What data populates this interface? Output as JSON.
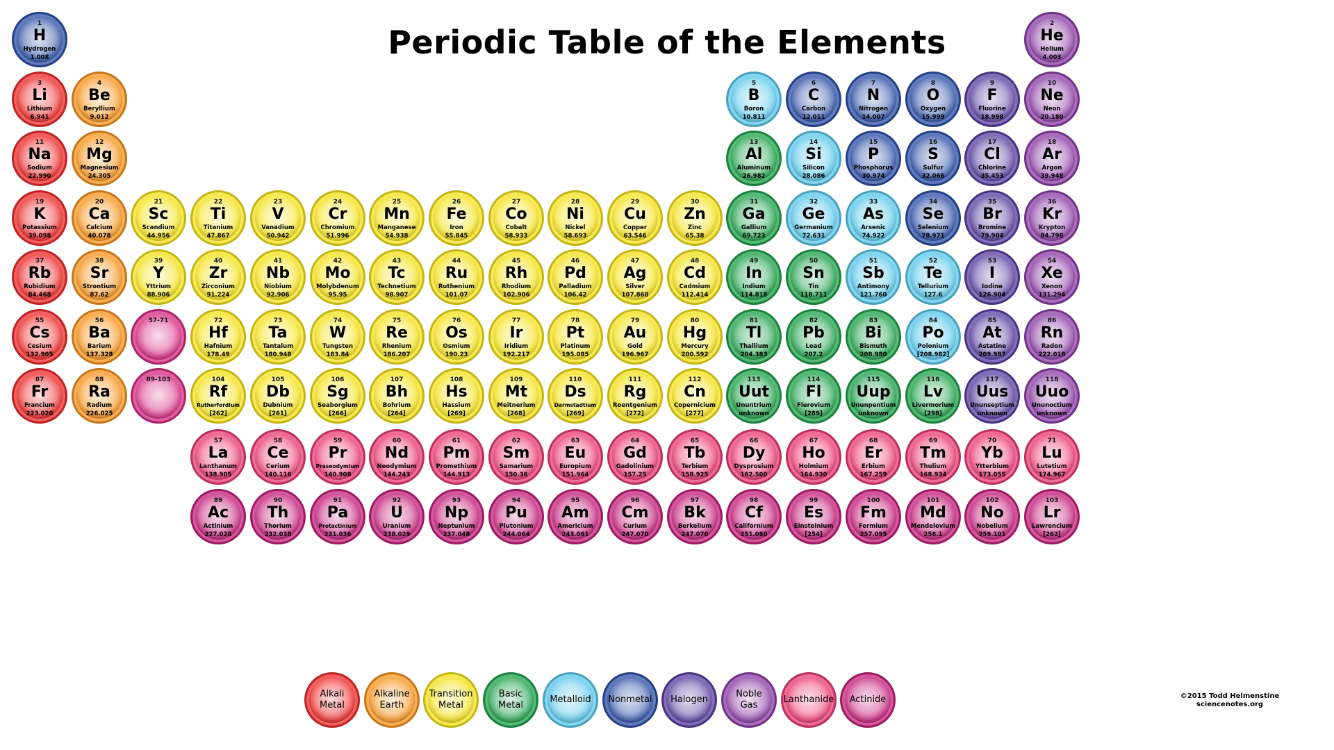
{
  "title": "Periodic Table of the Elements",
  "colors": {
    "alkali": "#ee2a2a",
    "alkaline": "#f7941d",
    "transition": "#f4e21a",
    "basic": "#1fa14a",
    "metalloid": "#5bc8ea",
    "nonmetal": "#2d4fa6",
    "halogen": "#5a3fa0",
    "noble": "#8b3ea5",
    "lanthanide": "#ea3b74",
    "actinide": "#c41f7a",
    "placeholder": "#d62a82"
  },
  "elements": [
    {
      "n": "1",
      "s": "H",
      "name": "Hydrogen",
      "m": "1.008",
      "c": "nonmetal",
      "r": 1,
      "col": 1
    },
    {
      "n": "2",
      "s": "He",
      "name": "Helium",
      "m": "4.003",
      "c": "noble",
      "r": 1,
      "col": 18
    },
    {
      "n": "3",
      "s": "Li",
      "name": "Lithium",
      "m": "6.941",
      "c": "alkali",
      "r": 2,
      "col": 1
    },
    {
      "n": "4",
      "s": "Be",
      "name": "Beryllium",
      "m": "9.012",
      "c": "alkaline",
      "r": 2,
      "col": 2
    },
    {
      "n": "5",
      "s": "B",
      "name": "Boron",
      "m": "10.811",
      "c": "metalloid",
      "r": 2,
      "col": 13
    },
    {
      "n": "6",
      "s": "C",
      "name": "Carbon",
      "m": "12.011",
      "c": "nonmetal",
      "r": 2,
      "col": 14
    },
    {
      "n": "7",
      "s": "N",
      "name": "Nitrogen",
      "m": "14.007",
      "c": "nonmetal",
      "r": 2,
      "col": 15
    },
    {
      "n": "8",
      "s": "O",
      "name": "Oxygen",
      "m": "15.999",
      "c": "nonmetal",
      "r": 2,
      "col": 16
    },
    {
      "n": "9",
      "s": "F",
      "name": "Fluorine",
      "m": "18.998",
      "c": "halogen",
      "r": 2,
      "col": 17
    },
    {
      "n": "10",
      "s": "Ne",
      "name": "Neon",
      "m": "20.180",
      "c": "noble",
      "r": 2,
      "col": 18
    },
    {
      "n": "11",
      "s": "Na",
      "name": "Sodium",
      "m": "22.990",
      "c": "alkali",
      "r": 3,
      "col": 1
    },
    {
      "n": "12",
      "s": "Mg",
      "name": "Magnesium",
      "m": "24.305",
      "c": "alkaline",
      "r": 3,
      "col": 2
    },
    {
      "n": "13",
      "s": "Al",
      "name": "Aluminum",
      "m": "26.982",
      "c": "basic",
      "r": 3,
      "col": 13
    },
    {
      "n": "14",
      "s": "Si",
      "name": "Silicon",
      "m": "28.086",
      "c": "metalloid",
      "r": 3,
      "col": 14
    },
    {
      "n": "15",
      "s": "P",
      "name": "Phosphorus",
      "m": "30.974",
      "c": "nonmetal",
      "r": 3,
      "col": 15
    },
    {
      "n": "16",
      "s": "S",
      "name": "Sulfur",
      "m": "32.066",
      "c": "nonmetal",
      "r": 3,
      "col": 16
    },
    {
      "n": "17",
      "s": "Cl",
      "name": "Chlorine",
      "m": "35.453",
      "c": "halogen",
      "r": 3,
      "col": 17
    },
    {
      "n": "18",
      "s": "Ar",
      "name": "Argon",
      "m": "39.948",
      "c": "noble",
      "r": 3,
      "col": 18
    },
    {
      "n": "19",
      "s": "K",
      "name": "Potassium",
      "m": "39.098",
      "c": "alkali",
      "r": 4,
      "col": 1
    },
    {
      "n": "20",
      "s": "Ca",
      "name": "Calcium",
      "m": "40.078",
      "c": "alkaline",
      "r": 4,
      "col": 2
    },
    {
      "n": "21",
      "s": "Sc",
      "name": "Scandium",
      "m": "44.956",
      "c": "transition",
      "r": 4,
      "col": 3
    },
    {
      "n": "22",
      "s": "Ti",
      "name": "Titanium",
      "m": "47.867",
      "c": "transition",
      "r": 4,
      "col": 4
    },
    {
      "n": "23",
      "s": "V",
      "name": "Vanadium",
      "m": "50.942",
      "c": "transition",
      "r": 4,
      "col": 5
    },
    {
      "n": "24",
      "s": "Cr",
      "name": "Chromium",
      "m": "51.996",
      "c": "transition",
      "r": 4,
      "col": 6
    },
    {
      "n": "25",
      "s": "Mn",
      "name": "Manganese",
      "m": "54.938",
      "c": "transition",
      "r": 4,
      "col": 7
    },
    {
      "n": "26",
      "s": "Fe",
      "name": "Iron",
      "m": "55.845",
      "c": "transition",
      "r": 4,
      "col": 8
    },
    {
      "n": "27",
      "s": "Co",
      "name": "Cobalt",
      "m": "58.933",
      "c": "transition",
      "r": 4,
      "col": 9
    },
    {
      "n": "28",
      "s": "Ni",
      "name": "Nickel",
      "m": "58.693",
      "c": "transition",
      "r": 4,
      "col": 10
    },
    {
      "n": "29",
      "s": "Cu",
      "name": "Copper",
      "m": "63.546",
      "c": "transition",
      "r": 4,
      "col": 11
    },
    {
      "n": "30",
      "s": "Zn",
      "name": "Zinc",
      "m": "65.38",
      "c": "transition",
      "r": 4,
      "col": 12
    },
    {
      "n": "31",
      "s": "Ga",
      "name": "Gallium",
      "m": "69.723",
      "c": "basic",
      "r": 4,
      "col": 13
    },
    {
      "n": "32",
      "s": "Ge",
      "name": "Germanium",
      "m": "72.631",
      "c": "metalloid",
      "r": 4,
      "col": 14
    },
    {
      "n": "33",
      "s": "As",
      "name": "Arsenic",
      "m": "74.922",
      "c": "metalloid",
      "r": 4,
      "col": 15
    },
    {
      "n": "34",
      "s": "Se",
      "name": "Selenium",
      "m": "78.971",
      "c": "nonmetal",
      "r": 4,
      "col": 16
    },
    {
      "n": "35",
      "s": "Br",
      "name": "Bromine",
      "m": "79.904",
      "c": "halogen",
      "r": 4,
      "col": 17
    },
    {
      "n": "36",
      "s": "Kr",
      "name": "Krypton",
      "m": "84.798",
      "c": "noble",
      "r": 4,
      "col": 18
    },
    {
      "n": "37",
      "s": "Rb",
      "name": "Rubidium",
      "m": "84.468",
      "c": "alkali",
      "r": 5,
      "col": 1
    },
    {
      "n": "38",
      "s": "Sr",
      "name": "Strontium",
      "m": "87.62",
      "c": "alkaline",
      "r": 5,
      "col": 2
    },
    {
      "n": "39",
      "s": "Y",
      "name": "Yttrium",
      "m": "88.906",
      "c": "transition",
      "r": 5,
      "col": 3
    },
    {
      "n": "40",
      "s": "Zr",
      "name": "Zirconium",
      "m": "91.224",
      "c": "transition",
      "r": 5,
      "col": 4
    },
    {
      "n": "41",
      "s": "Nb",
      "name": "Niobium",
      "m": "92.906",
      "c": "transition",
      "r": 5,
      "col": 5
    },
    {
      "n": "42",
      "s": "Mo",
      "name": "Molybdenum",
      "m": "95.95",
      "c": "transition",
      "r": 5,
      "col": 6
    },
    {
      "n": "43",
      "s": "Tc",
      "name": "Technetium",
      "m": "98.907",
      "c": "transition",
      "r": 5,
      "col": 7
    },
    {
      "n": "44",
      "s": "Ru",
      "name": "Ruthenium",
      "m": "101.07",
      "c": "transition",
      "r": 5,
      "col": 8
    },
    {
      "n": "45",
      "s": "Rh",
      "name": "Rhodium",
      "m": "102.906",
      "c": "transition",
      "r": 5,
      "col": 9
    },
    {
      "n": "46",
      "s": "Pd",
      "name": "Palladium",
      "m": "106.42",
      "c": "transition",
      "r": 5,
      "col": 10
    },
    {
      "n": "47",
      "s": "Ag",
      "name": "Silver",
      "m": "107.868",
      "c": "transition",
      "r": 5,
      "col": 11
    },
    {
      "n": "48",
      "s": "Cd",
      "name": "Cadmium",
      "m": "112.414",
      "c": "transition",
      "r": 5,
      "col": 12
    },
    {
      "n": "49",
      "s": "In",
      "name": "Indium",
      "m": "114.818",
      "c": "basic",
      "r": 5,
      "col": 13
    },
    {
      "n": "50",
      "s": "Sn",
      "name": "Tin",
      "m": "118.711",
      "c": "basic",
      "r": 5,
      "col": 14
    },
    {
      "n": "51",
      "s": "Sb",
      "name": "Antimony",
      "m": "121.760",
      "c": "metalloid",
      "r": 5,
      "col": 15
    },
    {
      "n": "52",
      "s": "Te",
      "name": "Tellurium",
      "m": "127.6",
      "c": "metalloid",
      "r": 5,
      "col": 16
    },
    {
      "n": "53",
      "s": "I",
      "name": "Iodine",
      "m": "126.904",
      "c": "halogen",
      "r": 5,
      "col": 17
    },
    {
      "n": "54",
      "s": "Xe",
      "name": "Xenon",
      "m": "131.294",
      "c": "noble",
      "r": 5,
      "col": 18
    },
    {
      "n": "55",
      "s": "Cs",
      "name": "Cesium",
      "m": "132.905",
      "c": "alkali",
      "r": 6,
      "col": 1
    },
    {
      "n": "56",
      "s": "Ba",
      "name": "Barium",
      "m": "137.328",
      "c": "alkaline",
      "r": 6,
      "col": 2
    },
    {
      "n": "57-71",
      "s": "",
      "name": "",
      "m": "",
      "c": "placeholder",
      "r": 6,
      "col": 3
    },
    {
      "n": "72",
      "s": "Hf",
      "name": "Hafnium",
      "m": "178.49",
      "c": "transition",
      "r": 6,
      "col": 4
    },
    {
      "n": "73",
      "s": "Ta",
      "name": "Tantalum",
      "m": "180.948",
      "c": "transition",
      "r": 6,
      "col": 5
    },
    {
      "n": "74",
      "s": "W",
      "name": "Tungsten",
      "m": "183.84",
      "c": "transition",
      "r": 6,
      "col": 6
    },
    {
      "n": "75",
      "s": "Re",
      "name": "Rhenium",
      "m": "186.207",
      "c": "transition",
      "r": 6,
      "col": 7
    },
    {
      "n": "76",
      "s": "Os",
      "name": "Osmium",
      "m": "190.23",
      "c": "transition",
      "r": 6,
      "col": 8
    },
    {
      "n": "77",
      "s": "Ir",
      "name": "Iridium",
      "m": "192.217",
      "c": "transition",
      "r": 6,
      "col": 9
    },
    {
      "n": "78",
      "s": "Pt",
      "name": "Platinum",
      "m": "195.085",
      "c": "transition",
      "r": 6,
      "col": 10
    },
    {
      "n": "79",
      "s": "Au",
      "name": "Gold",
      "m": "196.967",
      "c": "transition",
      "r": 6,
      "col": 11
    },
    {
      "n": "80",
      "s": "Hg",
      "name": "Mercury",
      "m": "200.592",
      "c": "transition",
      "r": 6,
      "col": 12
    },
    {
      "n": "81",
      "s": "Tl",
      "name": "Thallium",
      "m": "204.383",
      "c": "basic",
      "r": 6,
      "col": 13
    },
    {
      "n": "82",
      "s": "Pb",
      "name": "Lead",
      "m": "207.2",
      "c": "basic",
      "r": 6,
      "col": 14
    },
    {
      "n": "83",
      "s": "Bi",
      "name": "Bismuth",
      "m": "208.980",
      "c": "basic",
      "r": 6,
      "col": 15
    },
    {
      "n": "84",
      "s": "Po",
      "name": "Polonium",
      "m": "[208.982]",
      "c": "metalloid",
      "r": 6,
      "col": 16
    },
    {
      "n": "85",
      "s": "At",
      "name": "Astatine",
      "m": "209.987",
      "c": "halogen",
      "r": 6,
      "col": 17
    },
    {
      "n": "86",
      "s": "Rn",
      "name": "Radon",
      "m": "222.018",
      "c": "noble",
      "r": 6,
      "col": 18
    },
    {
      "n": "87",
      "s": "Fr",
      "name": "Francium",
      "m": "223.020",
      "c": "alkali",
      "r": 7,
      "col": 1
    },
    {
      "n": "88",
      "s": "Ra",
      "name": "Radium",
      "m": "226.025",
      "c": "alkaline",
      "r": 7,
      "col": 2
    },
    {
      "n": "89-103",
      "s": "",
      "name": "",
      "m": "",
      "c": "placeholder",
      "r": 7,
      "col": 3
    },
    {
      "n": "104",
      "s": "Rf",
      "name": "Rutherfordium",
      "m": "[262]",
      "c": "transition",
      "r": 7,
      "col": 4
    },
    {
      "n": "105",
      "s": "Db",
      "name": "Dubnium",
      "m": "[261]",
      "c": "transition",
      "r": 7,
      "col": 5
    },
    {
      "n": "106",
      "s": "Sg",
      "name": "Seaborgium",
      "m": "[266]",
      "c": "transition",
      "r": 7,
      "col": 6
    },
    {
      "n": "107",
      "s": "Bh",
      "name": "Bohrium",
      "m": "[264]",
      "c": "transition",
      "r": 7,
      "col": 7
    },
    {
      "n": "108",
      "s": "Hs",
      "name": "Hassium",
      "m": "[269]",
      "c": "transition",
      "r": 7,
      "col": 8
    },
    {
      "n": "109",
      "s": "Mt",
      "name": "Meitnerium",
      "m": "[268]",
      "c": "transition",
      "r": 7,
      "col": 9
    },
    {
      "n": "110",
      "s": "Ds",
      "name": "Darmstadtium",
      "m": "[269]",
      "c": "transition",
      "r": 7,
      "col": 10
    },
    {
      "n": "111",
      "s": "Rg",
      "name": "Roentgenium",
      "m": "[272]",
      "c": "transition",
      "r": 7,
      "col": 11
    },
    {
      "n": "112",
      "s": "Cn",
      "name": "Copernicium",
      "m": "[277]",
      "c": "transition",
      "r": 7,
      "col": 12
    },
    {
      "n": "113",
      "s": "Uut",
      "name": "Ununtrium",
      "m": "unknown",
      "c": "basic",
      "r": 7,
      "col": 13
    },
    {
      "n": "114",
      "s": "Fl",
      "name": "Flerovium",
      "m": "[289]",
      "c": "basic",
      "r": 7,
      "col": 14
    },
    {
      "n": "115",
      "s": "Uup",
      "name": "Ununpentium",
      "m": "unknown",
      "c": "basic",
      "r": 7,
      "col": 15
    },
    {
      "n": "116",
      "s": "Lv",
      "name": "Livermorium",
      "m": "[298]",
      "c": "basic",
      "r": 7,
      "col": 16
    },
    {
      "n": "117",
      "s": "Uus",
      "name": "Ununseptium",
      "m": "unknown",
      "c": "halogen",
      "r": 7,
      "col": 17
    },
    {
      "n": "118",
      "s": "Uuo",
      "name": "Ununoctium",
      "m": "unknown",
      "c": "noble",
      "r": 7,
      "col": 18
    },
    {
      "n": "57",
      "s": "La",
      "name": "Lanthanum",
      "m": "138.905",
      "c": "lanthanide",
      "r": 8,
      "col": 4
    },
    {
      "n": "58",
      "s": "Ce",
      "name": "Cerium",
      "m": "140.116",
      "c": "lanthanide",
      "r": 8,
      "col": 5
    },
    {
      "n": "59",
      "s": "Pr",
      "name": "Praseodymium",
      "m": "140.908",
      "c": "lanthanide",
      "r": 8,
      "col": 6
    },
    {
      "n": "60",
      "s": "Nd",
      "name": "Neodymium",
      "m": "144.243",
      "c": "lanthanide",
      "r": 8,
      "col": 7
    },
    {
      "n": "61",
      "s": "Pm",
      "name": "Promethium",
      "m": "144.913",
      "c": "lanthanide",
      "r": 8,
      "col": 8
    },
    {
      "n": "62",
      "s": "Sm",
      "name": "Samarium",
      "m": "150.36",
      "c": "lanthanide",
      "r": 8,
      "col": 9
    },
    {
      "n": "63",
      "s": "Eu",
      "name": "Europium",
      "m": "151.964",
      "c": "lanthanide",
      "r": 8,
      "col": 10
    },
    {
      "n": "64",
      "s": "Gd",
      "name": "Gadolinium",
      "m": "157.25",
      "c": "lanthanide",
      "r": 8,
      "col": 11
    },
    {
      "n": "65",
      "s": "Tb",
      "name": "Terbium",
      "m": "158.925",
      "c": "lanthanide",
      "r": 8,
      "col": 12
    },
    {
      "n": "66",
      "s": "Dy",
      "name": "Dysprosium",
      "m": "162.500",
      "c": "lanthanide",
      "r": 8,
      "col": 13
    },
    {
      "n": "67",
      "s": "Ho",
      "name": "Holmium",
      "m": "164.930",
      "c": "lanthanide",
      "r": 8,
      "col": 14
    },
    {
      "n": "68",
      "s": "Er",
      "name": "Erbium",
      "m": "167.259",
      "c": "lanthanide",
      "r": 8,
      "col": 15
    },
    {
      "n": "69",
      "s": "Tm",
      "name": "Thulium",
      "m": "168.934",
      "c": "lanthanide",
      "r": 8,
      "col": 16
    },
    {
      "n": "70",
      "s": "Yb",
      "name": "Ytterbium",
      "m": "173.055",
      "c": "lanthanide",
      "r": 8,
      "col": 17
    },
    {
      "n": "71",
      "s": "Lu",
      "name": "Lutetium",
      "m": "174.967",
      "c": "lanthanide",
      "r": 8,
      "col": 18
    },
    {
      "n": "89",
      "s": "Ac",
      "name": "Actinium",
      "m": "227.028",
      "c": "actinide",
      "r": 9,
      "col": 4
    },
    {
      "n": "90",
      "s": "Th",
      "name": "Thorium",
      "m": "232.038",
      "c": "actinide",
      "r": 9,
      "col": 5
    },
    {
      "n": "91",
      "s": "Pa",
      "name": "Protactinium",
      "m": "231.036",
      "c": "actinide",
      "r": 9,
      "col": 6
    },
    {
      "n": "92",
      "s": "U",
      "name": "Uranium",
      "m": "238.029",
      "c": "actinide",
      "r": 9,
      "col": 7
    },
    {
      "n": "93",
      "s": "Np",
      "name": "Neptunium",
      "m": "237.048",
      "c": "actinide",
      "r": 9,
      "col": 8
    },
    {
      "n": "94",
      "s": "Pu",
      "name": "Plutonium",
      "m": "244.064",
      "c": "actinide",
      "r": 9,
      "col": 9
    },
    {
      "n": "95",
      "s": "Am",
      "name": "Americium",
      "m": "243.061",
      "c": "actinide",
      "r": 9,
      "col": 10
    },
    {
      "n": "96",
      "s": "Cm",
      "name": "Curium",
      "m": "247.070",
      "c": "actinide",
      "r": 9,
      "col": 11
    },
    {
      "n": "97",
      "s": "Bk",
      "name": "Berkelium",
      "m": "247.070",
      "c": "actinide",
      "r": 9,
      "col": 12
    },
    {
      "n": "98",
      "s": "Cf",
      "name": "Californium",
      "m": "251.080",
      "c": "actinide",
      "r": 9,
      "col": 13
    },
    {
      "n": "99",
      "s": "Es",
      "name": "Einsteinium",
      "m": "[254]",
      "c": "actinide",
      "r": 9,
      "col": 14
    },
    {
      "n": "100",
      "s": "Fm",
      "name": "Fermium",
      "m": "257.095",
      "c": "actinide",
      "r": 9,
      "col": 15
    },
    {
      "n": "101",
      "s": "Md",
      "name": "Mendelevium",
      "m": "258.1",
      "c": "actinide",
      "r": 9,
      "col": 16
    },
    {
      "n": "102",
      "s": "No",
      "name": "Nobelium",
      "m": "259.101",
      "c": "actinide",
      "r": 9,
      "col": 17
    },
    {
      "n": "103",
      "s": "Lr",
      "name": "Lawrencium",
      "m": "[262]",
      "c": "actinide",
      "r": 9,
      "col": 18
    }
  ],
  "legend": [
    {
      "label": "Alkali\nMetal",
      "c": "alkali"
    },
    {
      "label": "Alkaline\nEarth",
      "c": "alkaline"
    },
    {
      "label": "Transition\nMetal",
      "c": "transition"
    },
    {
      "label": "Basic\nMetal",
      "c": "basic"
    },
    {
      "label": "Metalloid",
      "c": "metalloid"
    },
    {
      "label": "Nonmetal",
      "c": "nonmetal"
    },
    {
      "label": "Halogen",
      "c": "halogen"
    },
    {
      "label": "Noble\nGas",
      "c": "noble"
    },
    {
      "label": "Lanthanide",
      "c": "lanthanide"
    },
    {
      "label": "Actinide",
      "c": "actinide"
    }
  ],
  "credit": {
    "line1": "©2015 Todd Helmenstine",
    "line2": "sciencenotes.org"
  }
}
